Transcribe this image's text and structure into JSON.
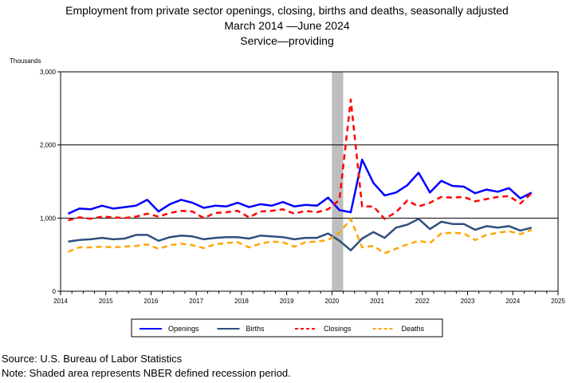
{
  "header": {
    "title_line1": "Employment from private sector openings, closing, births and deaths, seasonally adjusted",
    "title_line2": "March 2014  —June 2024",
    "title_line3": "Service—providing"
  },
  "footer": {
    "source": "Source: U.S. Bureau of Labor Statistics",
    "note": "Note: Shaded area represents NBER defined recession period."
  },
  "chart_data": {
    "type": "line",
    "title": "Employment from private sector openings, closing, births and deaths, seasonally adjusted",
    "subtitle": "March 2014 —June 2024 Service—providing",
    "ylabel": "Thousands",
    "xlim": [
      2014,
      2025
    ],
    "ylim": [
      0,
      3000
    ],
    "x_ticks": [
      "2014",
      "2015",
      "2016",
      "2017",
      "2018",
      "2019",
      "2020",
      "2021",
      "2022",
      "2023",
      "2024",
      "2025"
    ],
    "y_ticks": [
      "0",
      "1,000",
      "2,000",
      "3,000"
    ],
    "gridlines": [
      1000,
      2000
    ],
    "recession": [
      2020.0,
      2020.25
    ],
    "legend_position": "bottom",
    "x": [
      "2014-03",
      "2014-06",
      "2014-09",
      "2014-12",
      "2015-03",
      "2015-06",
      "2015-09",
      "2015-12",
      "2016-03",
      "2016-06",
      "2016-09",
      "2016-12",
      "2017-03",
      "2017-06",
      "2017-09",
      "2017-12",
      "2018-03",
      "2018-06",
      "2018-09",
      "2018-12",
      "2019-03",
      "2019-06",
      "2019-09",
      "2019-12",
      "2020-03",
      "2020-06",
      "2020-09",
      "2020-12",
      "2021-03",
      "2021-06",
      "2021-09",
      "2021-12",
      "2022-03",
      "2022-06",
      "2022-09",
      "2022-12",
      "2023-03",
      "2023-06",
      "2023-09",
      "2023-12",
      "2024-03",
      "2024-06"
    ],
    "series": [
      {
        "name": "Openings",
        "color": "#0000ff",
        "dash": "solid",
        "values": [
          1060,
          1130,
          1120,
          1170,
          1130,
          1150,
          1170,
          1250,
          1090,
          1190,
          1250,
          1210,
          1140,
          1170,
          1160,
          1210,
          1150,
          1190,
          1170,
          1220,
          1160,
          1180,
          1170,
          1280,
          1110,
          1080,
          1800,
          1480,
          1310,
          1350,
          1450,
          1620,
          1350,
          1510,
          1440,
          1430,
          1340,
          1390,
          1360,
          1410,
          1270,
          1350
        ]
      },
      {
        "name": "Births",
        "color": "#2f4f7f",
        "dash": "solid",
        "values": [
          680,
          700,
          710,
          730,
          710,
          720,
          770,
          770,
          690,
          740,
          760,
          750,
          710,
          730,
          740,
          740,
          720,
          760,
          750,
          740,
          710,
          730,
          730,
          790,
          690,
          560,
          720,
          810,
          730,
          870,
          910,
          990,
          850,
          950,
          920,
          920,
          840,
          890,
          870,
          890,
          830,
          870
        ]
      },
      {
        "name": "Closings",
        "color": "#ff0000",
        "dash": "dashed",
        "values": [
          970,
          1010,
          990,
          1020,
          1010,
          1000,
          1020,
          1060,
          1020,
          1070,
          1100,
          1090,
          1000,
          1070,
          1080,
          1100,
          1010,
          1090,
          1100,
          1120,
          1060,
          1100,
          1080,
          1120,
          1250,
          2620,
          1160,
          1160,
          990,
          1080,
          1240,
          1160,
          1210,
          1290,
          1280,
          1290,
          1230,
          1260,
          1290,
          1300,
          1200,
          1340
        ]
      },
      {
        "name": "Deaths",
        "color": "#ffa500",
        "dash": "dashed",
        "values": [
          540,
          600,
          600,
          610,
          600,
          610,
          620,
          640,
          580,
          630,
          650,
          630,
          590,
          640,
          660,
          670,
          600,
          650,
          680,
          670,
          610,
          670,
          680,
          700,
          800,
          990,
          600,
          620,
          520,
          580,
          640,
          690,
          660,
          790,
          800,
          790,
          700,
          770,
          800,
          820,
          780,
          840
        ]
      }
    ]
  }
}
